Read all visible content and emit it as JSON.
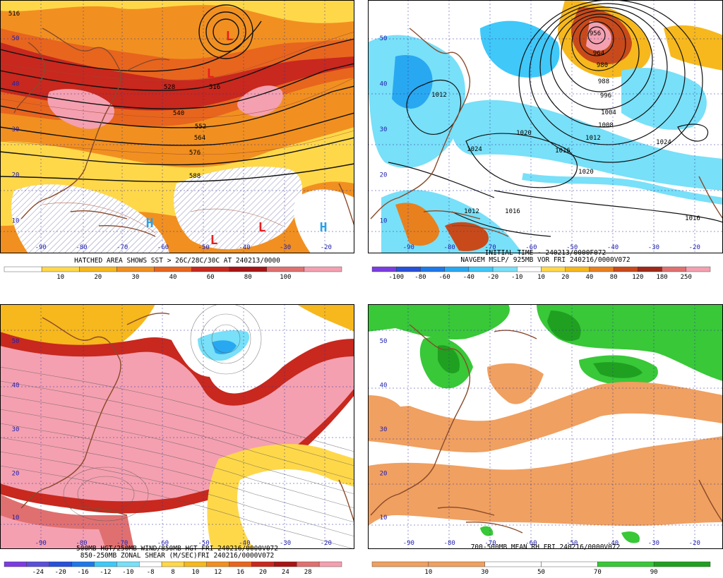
{
  "panels": [
    {
      "id": "p1",
      "caption": [
        "HATCHED AREA SHOWS SST > 26C/28C/30C AT 240213/0000"
      ],
      "lat_labels": [
        "50",
        "40",
        "30",
        "20",
        "10"
      ],
      "lon_labels": [
        "-90",
        "-80",
        "-70",
        "-60",
        "-50",
        "-40",
        "-30",
        "-20"
      ],
      "contour_labels": [
        "516",
        "528",
        "540",
        "552",
        "564",
        "576",
        "588",
        "516"
      ],
      "centers": [
        "L",
        "L",
        "H",
        "L",
        "L",
        "H"
      ],
      "colorbar": {
        "colors": [
          "#ffffff",
          "#ffd84a",
          "#f6b81c",
          "#f19020",
          "#e8651e",
          "#c8281e",
          "#a81414",
          "#e07070",
          "#f4a0b0"
        ],
        "labels": [
          "10",
          "20",
          "30",
          "40",
          "60",
          "80",
          "100"
        ]
      }
    },
    {
      "id": "p2",
      "caption": [
        "INITIAL TIME - 240213/0000F072",
        "NAVGEM MSLP/ 925MB VOR FRI 240216/0000V072"
      ],
      "lat_labels": [
        "50",
        "40",
        "30",
        "20",
        "10"
      ],
      "lon_labels": [
        "-90",
        "-80",
        "-70",
        "-60",
        "-50",
        "-40",
        "-30",
        "-20"
      ],
      "contour_labels": [
        "956",
        "964",
        "980",
        "988",
        "996",
        "1004",
        "1008",
        "1012",
        "1016",
        "1020",
        "1024",
        "1020",
        "1024",
        "1016",
        "1016",
        "1012",
        "1012"
      ],
      "colorbar": {
        "colors": [
          "#7a3ce0",
          "#2850d8",
          "#1e78e8",
          "#28a8f0",
          "#40c8f8",
          "#78e0f8",
          "#ffffff",
          "#ffd84a",
          "#f6b81c",
          "#e8801e",
          "#c84a1a",
          "#a02818",
          "#e07070",
          "#f4a0b0"
        ],
        "labels": [
          "-100",
          "-80",
          "-60",
          "-40",
          "-20",
          "-10",
          "10",
          "20",
          "40",
          "80",
          "120",
          "180",
          "250"
        ]
      }
    },
    {
      "id": "p3",
      "caption": [
        "500MB HGT/250MB WIND/850MB HGT FRI 240216/0000V072",
        "850-250MB ZONAL SHEAR (M/SEC)FRI 240216/0000V072"
      ],
      "lat_labels": [
        "50",
        "40",
        "30",
        "20",
        "10"
      ],
      "lon_labels": [
        "-90",
        "-80",
        "-70",
        "-60",
        "-50",
        "-40",
        "-30",
        "-20"
      ],
      "colorbar": {
        "colors": [
          "#7a3ce0",
          "#5a50d8",
          "#2850d8",
          "#1e78e8",
          "#40c8f8",
          "#78e0f8",
          "#ffffff",
          "#ffd84a",
          "#f6b81c",
          "#f19020",
          "#e8651e",
          "#c8281e",
          "#a81414",
          "#e07070",
          "#f4a0b0"
        ],
        "labels": [
          "-24",
          "-20",
          "-16",
          "-12",
          "-10",
          "-8",
          "8",
          "10",
          "12",
          "16",
          "20",
          "24",
          "28"
        ]
      }
    },
    {
      "id": "p4",
      "caption": [
        "700-500MB MEAN RH FRI 240216/0000V072"
      ],
      "lat_labels": [
        "50",
        "40",
        "30",
        "20",
        "10"
      ],
      "lon_labels": [
        "-90",
        "-80",
        "-70",
        "-60",
        "-50",
        "-40",
        "-30",
        "-20"
      ],
      "colorbar": {
        "colors": [
          "#f0a060",
          "#f0a060",
          "#ffffff",
          "#ffffff",
          "#38c838",
          "#20a020"
        ],
        "labels": [
          "10",
          "30",
          "50",
          "70",
          "90"
        ]
      }
    }
  ]
}
